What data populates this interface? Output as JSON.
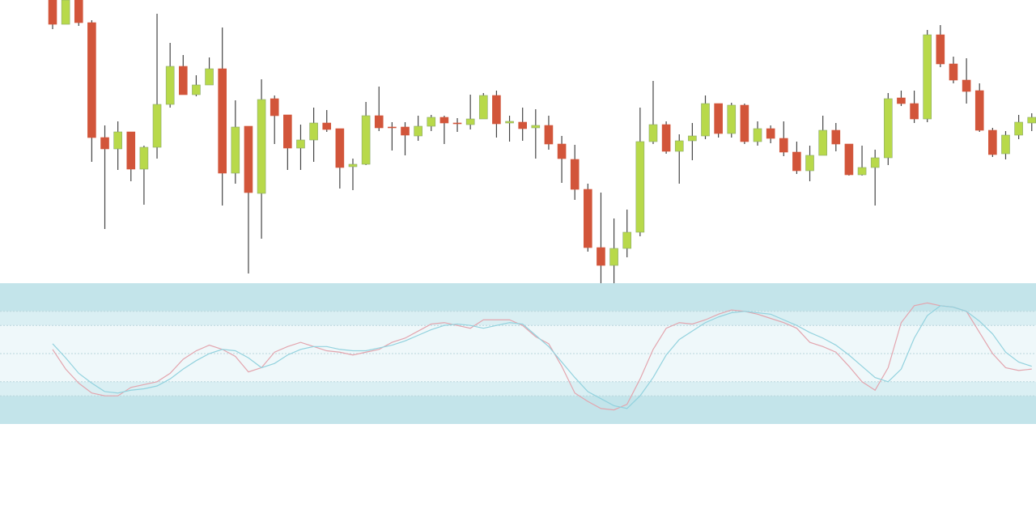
{
  "chart_data": [
    {
      "type": "candlestick",
      "ylim": [
        0,
        350
      ],
      "up_color": "#b8d94a",
      "down_color": "#d2553a",
      "wick_color": "#444444",
      "open": [
        350,
        320,
        350,
        322,
        180,
        166,
        187,
        141,
        168,
        221,
        268,
        233,
        245,
        265,
        136,
        194,
        111,
        228,
        208,
        167,
        177,
        198,
        191,
        144,
        147,
        207,
        193,
        193,
        182,
        194,
        205,
        198,
        196,
        203,
        232,
        198,
        199,
        192,
        195,
        172,
        153,
        116,
        44,
        22,
        43,
        63,
        175,
        196,
        163,
        176,
        182,
        222,
        185,
        220,
        175,
        191,
        179,
        162,
        139,
        158,
        189,
        172,
        134,
        143,
        155,
        229,
        222,
        203,
        307,
        271,
        251,
        238,
        189,
        160,
        183,
        198
      ],
      "high": [
        350,
        350,
        350,
        325,
        195,
        200,
        187,
        170,
        333,
        297,
        282,
        257,
        279,
        316,
        226,
        194,
        252,
        232,
        208,
        196,
        217,
        214,
        191,
        154,
        224,
        243,
        199,
        199,
        207,
        208,
        207,
        204,
        233,
        235,
        238,
        207,
        217,
        215,
        207,
        182,
        171,
        123,
        112,
        80,
        91,
        217,
        250,
        200,
        184,
        198,
        232,
        222,
        223,
        222,
        200,
        195,
        200,
        175,
        170,
        207,
        198,
        172,
        170,
        165,
        235,
        238,
        238,
        313,
        319,
        280,
        278,
        247,
        192,
        188,
        208,
        210
      ],
      "low": [
        314,
        320,
        318,
        150,
        67,
        140,
        126,
        97,
        154,
        217,
        233,
        231,
        245,
        96,
        123,
        12,
        55,
        172,
        140,
        140,
        150,
        187,
        117,
        115,
        146,
        188,
        164,
        158,
        176,
        188,
        172,
        187,
        190,
        203,
        180,
        175,
        176,
        154,
        165,
        124,
        103,
        39,
        -3,
        0,
        32,
        58,
        172,
        160,
        123,
        152,
        178,
        180,
        180,
        172,
        170,
        173,
        157,
        135,
        126,
        158,
        163,
        133,
        133,
        96,
        146,
        219,
        198,
        199,
        267,
        247,
        222,
        187,
        156,
        153,
        178,
        188
      ],
      "close": [
        320,
        350,
        322,
        180,
        166,
        187,
        141,
        168,
        221,
        268,
        233,
        245,
        265,
        136,
        193,
        112,
        227,
        207,
        167,
        177,
        198,
        190,
        143,
        147,
        207,
        192,
        192,
        183,
        194,
        205,
        198,
        197,
        203,
        232,
        197,
        200,
        191,
        195,
        172,
        154,
        116,
        44,
        22,
        43,
        63,
        175,
        196,
        163,
        176,
        182,
        222,
        185,
        220,
        175,
        191,
        179,
        162,
        139,
        158,
        189,
        172,
        134,
        143,
        155,
        228,
        222,
        203,
        307,
        271,
        251,
        237,
        189,
        159,
        183,
        199,
        205
      ]
    },
    {
      "type": "line",
      "ylim": [
        0,
        100
      ],
      "yticks": [
        20,
        30,
        50,
        70,
        80
      ],
      "band_colors": [
        "#c3e4ea",
        "#daeff3",
        "#eff8fa"
      ],
      "series": [
        {
          "color": "#e3a5ae",
          "values": [
            53,
            39,
            29,
            22,
            20,
            20,
            26,
            28,
            30,
            36,
            46,
            52,
            56,
            53,
            48,
            37,
            40,
            51,
            55,
            58,
            55,
            52,
            51,
            49,
            51,
            53,
            58,
            61,
            66,
            71,
            72,
            70,
            68,
            74,
            74,
            74,
            70,
            62,
            57,
            41,
            22,
            16,
            11,
            10,
            14,
            32,
            53,
            68,
            72,
            71,
            74,
            78,
            81,
            80,
            78,
            75,
            72,
            68,
            58,
            55,
            51,
            41,
            30,
            24,
            40,
            72,
            84,
            86,
            84,
            83,
            80,
            65,
            50,
            40,
            38,
            39
          ]
        },
        {
          "color": "#93d2de",
          "values": [
            57,
            47,
            36,
            29,
            23,
            22,
            24,
            25,
            27,
            32,
            39,
            45,
            50,
            53,
            52,
            47,
            40,
            43,
            49,
            53,
            55,
            55,
            53,
            52,
            52,
            54,
            56,
            59,
            63,
            67,
            70,
            71,
            70,
            68,
            70,
            72,
            71,
            63,
            55,
            44,
            33,
            23,
            18,
            13,
            11,
            20,
            33,
            49,
            60,
            66,
            72,
            76,
            79,
            80,
            79,
            78,
            74,
            70,
            65,
            61,
            56,
            49,
            41,
            33,
            30,
            39,
            61,
            77,
            84,
            83,
            80,
            73,
            64,
            51,
            44,
            41
          ]
        }
      ]
    }
  ]
}
